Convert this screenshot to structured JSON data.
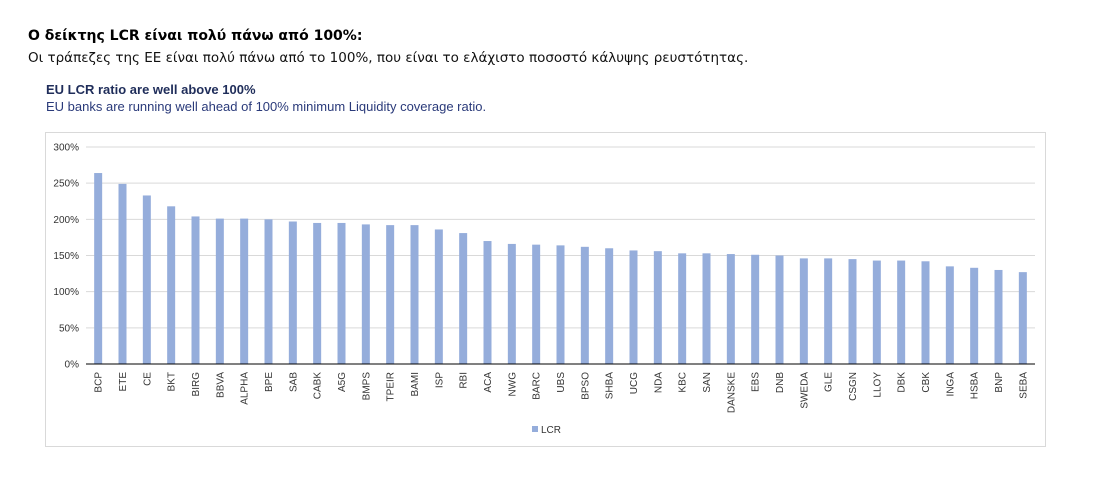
{
  "page": {
    "heading": "Ο δείκτης LCR είναι πολύ πάνω από 100%:",
    "intro": "Οι τράπεζες της ΕΕ είναι πολύ πάνω από το 100%, που είναι το ελάχιστο ποσοστό κάλυψης ρευστότητας."
  },
  "colors": {
    "bar": "#95ADDB",
    "grid": "#d9d9d9",
    "axis": "#000000"
  },
  "chart_data": {
    "type": "bar",
    "title": "EU LCR ratio are well above 100%",
    "subtitle": "EU banks are running well ahead of 100% minimum Liquidity coverage ratio.",
    "categories": [
      "BCP",
      "ETE",
      "CE",
      "BKT",
      "BIRG",
      "BBVA",
      "ALPHA",
      "BPE",
      "SAB",
      "CABK",
      "A5G",
      "BMPS",
      "TPEIR",
      "BAMI",
      "ISP",
      "RBI",
      "ACA",
      "NWG",
      "BARC",
      "UBS",
      "BPSO",
      "SHBA",
      "UCG",
      "NDA",
      "KBC",
      "SAN",
      "DANSKE",
      "EBS",
      "DNB",
      "SWEDA",
      "GLE",
      "CSGN",
      "LLOY",
      "DBK",
      "CBK",
      "INGA",
      "HSBA",
      "BNP",
      "SEBA"
    ],
    "series": [
      {
        "name": "LCR",
        "values": [
          264,
          249,
          233,
          218,
          204,
          201,
          201,
          200,
          197,
          195,
          195,
          193,
          192,
          192,
          186,
          181,
          170,
          166,
          165,
          164,
          162,
          160,
          157,
          156,
          153,
          153,
          152,
          151,
          150,
          146,
          146,
          145,
          143,
          143,
          142,
          135,
          133,
          130,
          127
        ]
      }
    ],
    "yticks": [
      "300%",
      "250%",
      "200%",
      "150%",
      "100%",
      "50%",
      "0%"
    ],
    "ylim": [
      0,
      300
    ],
    "y_unit": "%",
    "grid": true,
    "legend_position": "bottom"
  }
}
